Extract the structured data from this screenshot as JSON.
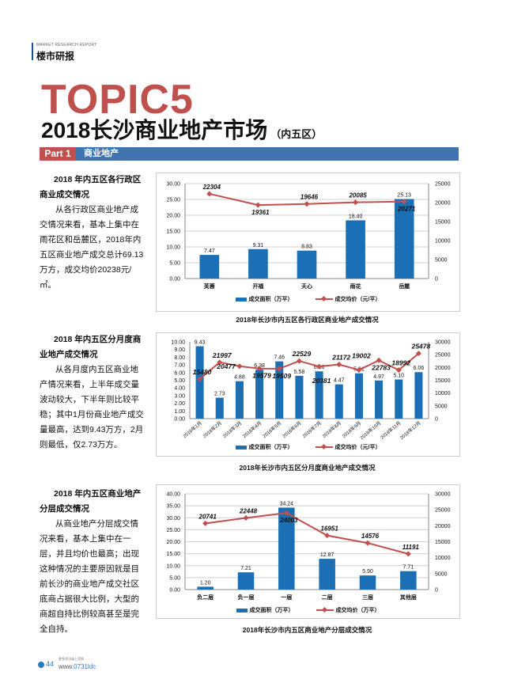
{
  "header": {
    "en": "MARKET RESEARCH REPORT",
    "cn": "楼市研报"
  },
  "topic": "TOPIC5",
  "title": "2018长沙商业地产市场",
  "title_suffix": "（内五区）",
  "part": {
    "num": "Part 1",
    "label": "商业地产"
  },
  "sections": [
    {
      "heading1": "2018 年内五区各行政区",
      "heading2": "商业成交情况",
      "body": "从各行政区商业地产成交情况来看，基本上集中在雨花区和岳麓区，2018年内五区商业地产成交总计69.13万方，成交均价20238元/㎡。"
    },
    {
      "heading1": "2018 年内五区分月度商",
      "heading2": "业地产成交情况",
      "body": "从各月度内五区商业地产情况来看，上半年成交量波动较大，下半年则比较平稳；其中1月份商业地产成交量最高，达到9.43万方，2月则最低，仅2.73万方。"
    },
    {
      "heading1": "2018 年内五区商业地产",
      "heading2": "分层成交情况",
      "body": "从商业地产分层成交情况来看，基本上集中在一层，并且均价也最高；出现这种情况的主要原因就是目前长沙的商业地产成交社区底商占据很大比例，大型的商超自持比例较高甚至是完全自持。"
    }
  ],
  "colors": {
    "bar": "#1a6fb5",
    "line": "#c0504d",
    "accent": "#3f74b1"
  },
  "chart_data": [
    {
      "type": "bar+line",
      "title": "2018年长沙市内五区各行政区商业地产成交情况",
      "categories": [
        "芙蓉",
        "开福",
        "天心",
        "雨花",
        "岳麓"
      ],
      "series": [
        {
          "name": "成交面积（万平）",
          "axis": "left",
          "values": [
            7.47,
            9.31,
            8.83,
            18.4,
            25.13
          ]
        },
        {
          "name": "成交均价（元/平）",
          "axis": "right",
          "values": [
            22304,
            19361,
            19646,
            20085,
            20271
          ]
        }
      ],
      "ylim": [
        0,
        30
      ],
      "yticks": [
        0,
        5,
        10,
        15,
        20,
        25,
        30
      ],
      "y2lim": [
        0,
        25000
      ],
      "y2ticks": [
        0,
        5000,
        10000,
        15000,
        20000,
        25000
      ],
      "grid": true,
      "legend": "bottom"
    },
    {
      "type": "bar+line",
      "title": "2018年长沙市内五区分月度商业地产成交情况",
      "categories": [
        "2018年1月",
        "2018年2月",
        "2018年3月",
        "2018年4月",
        "2018年5月",
        "2018年6月",
        "2018年7月",
        "2018年8月",
        "2018年9月",
        "2018年10月",
        "2018年11月",
        "2018年12月"
      ],
      "series": [
        {
          "name": "成交面积（万平）",
          "axis": "left",
          "values": [
            9.43,
            2.73,
            4.88,
            6.38,
            7.46,
            5.58,
            6.16,
            4.47,
            5.91,
            4.97,
            5.1,
            6.06
          ]
        },
        {
          "name": "成交均价（元/平）",
          "axis": "right",
          "values": [
            15480,
            21997,
            20477,
            19579,
            19509,
            22529,
            20381,
            21172,
            19002,
            22783,
            18992,
            25478
          ]
        }
      ],
      "ylim": [
        0,
        10
      ],
      "yticks": [
        0,
        1,
        2,
        3,
        4,
        5,
        6,
        7,
        8,
        9,
        10
      ],
      "y2lim": [
        0,
        30000
      ],
      "y2ticks": [
        0,
        5000,
        10000,
        15000,
        20000,
        25000,
        30000
      ],
      "grid": false,
      "legend": "bottom"
    },
    {
      "type": "bar+line",
      "title": "2018年长沙市内五区商业地产分层成交情况",
      "categories": [
        "负二层",
        "负一层",
        "一层",
        "二层",
        "三层",
        "其他层"
      ],
      "series": [
        {
          "name": "成交面积（万平）",
          "axis": "left",
          "values": [
            1.2,
            7.21,
            34.24,
            12.87,
            5.9,
            7.71
          ]
        },
        {
          "name": "成交均价（万平）",
          "axis": "right",
          "values": [
            20741,
            22448,
            24003,
            16951,
            14576,
            11191
          ]
        }
      ],
      "ylim": [
        0,
        40
      ],
      "yticks": [
        0,
        5,
        10,
        15,
        20,
        25,
        30,
        35,
        40
      ],
      "y2lim": [
        0,
        30000
      ],
      "y2ticks": [
        0,
        5000,
        10000,
        15000,
        20000,
        25000,
        30000
      ],
      "grid": true,
      "legend": "bottom"
    }
  ],
  "footer": {
    "page": "44",
    "small": "更多资讯请上官网",
    "url_pre": "www.",
    "url_mid": "0731ldc",
    ".com": ".com"
  }
}
